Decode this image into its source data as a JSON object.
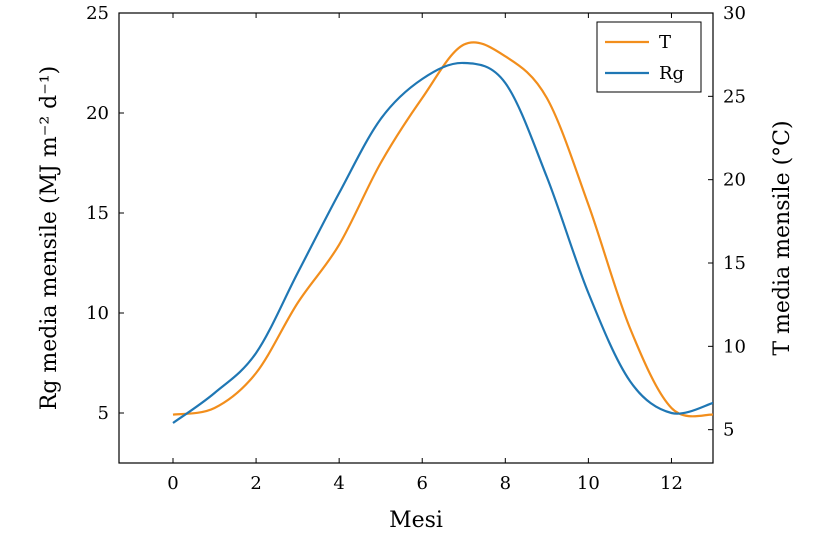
{
  "chart_data": {
    "type": "line",
    "xlabel": "Mesi",
    "ylabel_left": "Rg media mensile (MJ m⁻² d⁻¹)",
    "ylabel_right": "T media mensile (°C)",
    "xlim": [
      -1.3,
      13
    ],
    "ylim_left": [
      2.5,
      25
    ],
    "ylim_right": [
      3,
      30
    ],
    "x_ticks": [
      0,
      2,
      4,
      6,
      8,
      10,
      12
    ],
    "y_ticks_left": [
      5,
      10,
      15,
      20,
      25
    ],
    "y_ticks_right": [
      5,
      10,
      15,
      20,
      25,
      30
    ],
    "grid": false,
    "legend_position": "top-right",
    "series": [
      {
        "name": "T",
        "axis": "right",
        "color": "#F28E1C",
        "x": [
          0,
          1,
          2,
          3,
          4,
          5,
          6,
          7,
          8,
          9,
          10,
          11,
          12,
          13
        ],
        "y": [
          5.9,
          6.3,
          8.4,
          12.6,
          16.1,
          21.0,
          24.9,
          28.1,
          27.4,
          24.9,
          18.5,
          11.1,
          6.3,
          5.9
        ]
      },
      {
        "name": "Rg",
        "axis": "left",
        "color": "#1F77B4",
        "x": [
          0,
          1,
          2,
          3,
          4,
          5,
          6,
          7,
          8,
          9,
          10,
          11,
          12,
          13
        ],
        "y": [
          4.5,
          6.0,
          8.0,
          12.0,
          16.0,
          19.7,
          21.7,
          22.5,
          21.5,
          16.8,
          11.0,
          6.6,
          5.0,
          5.5
        ]
      }
    ]
  }
}
